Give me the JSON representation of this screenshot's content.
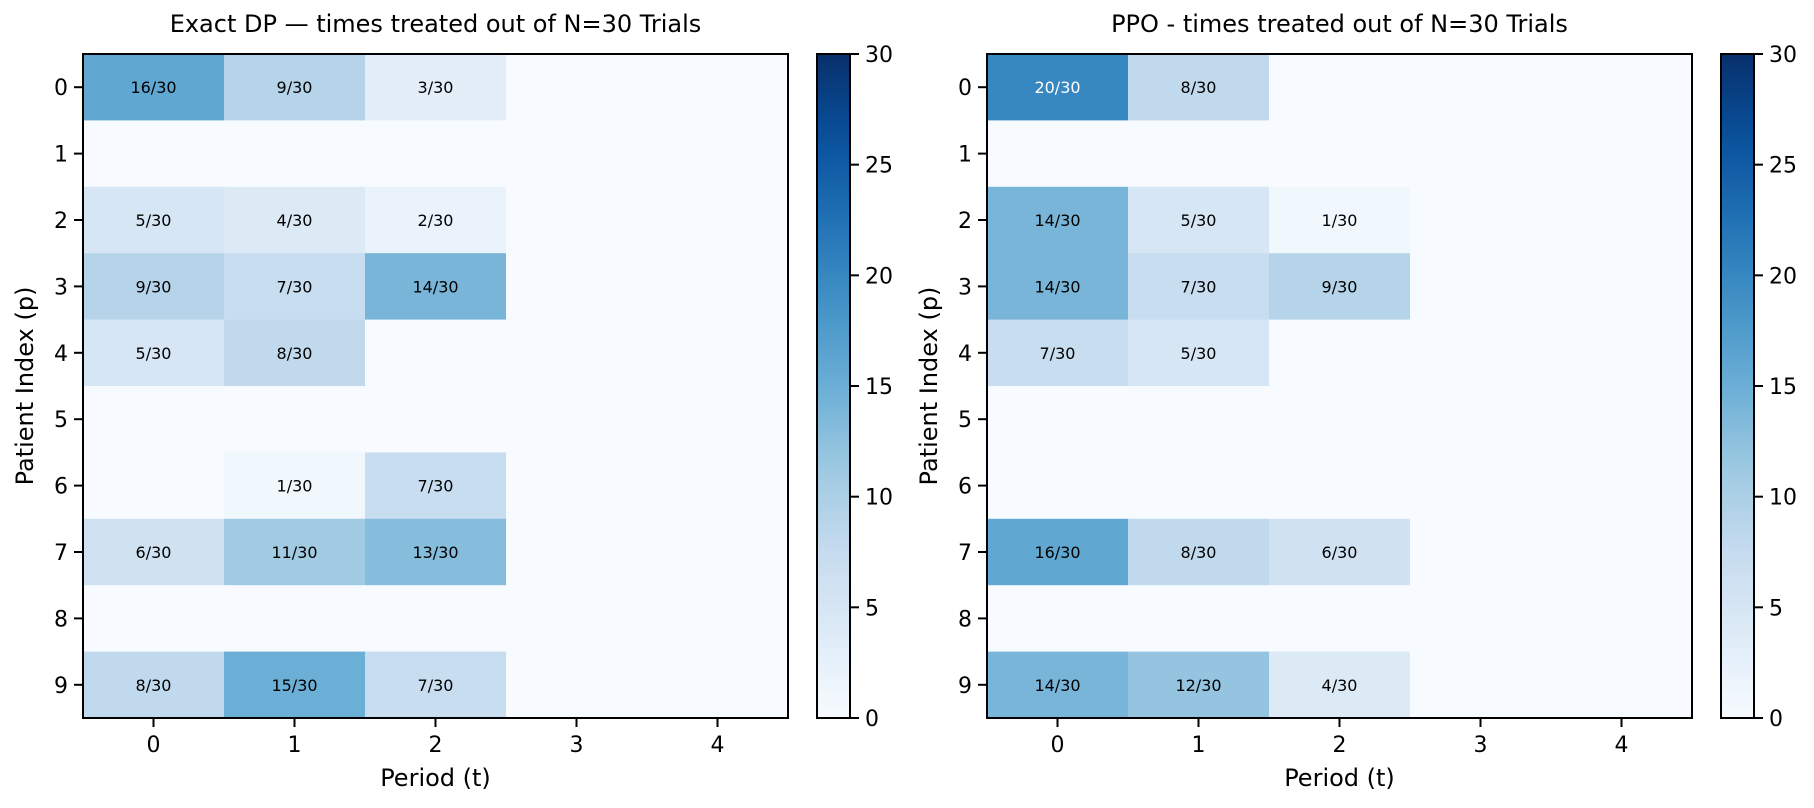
{
  "chart_data": [
    {
      "type": "heatmap",
      "title": "Exact DP — times treated out of N=30 Trials",
      "xlabel": "Period (t)",
      "ylabel": "Patient Index (p)",
      "x_categories": [
        "0",
        "1",
        "2",
        "3",
        "4"
      ],
      "y_categories": [
        "0",
        "1",
        "2",
        "3",
        "4",
        "5",
        "6",
        "7",
        "8",
        "9"
      ],
      "n_trials": 30,
      "values": [
        [
          16,
          9,
          3,
          0,
          0
        ],
        [
          0,
          0,
          0,
          0,
          0
        ],
        [
          5,
          4,
          2,
          0,
          0
        ],
        [
          9,
          7,
          14,
          0,
          0
        ],
        [
          5,
          8,
          0,
          0,
          0
        ],
        [
          0,
          0,
          0,
          0,
          0
        ],
        [
          0,
          1,
          7,
          0,
          0
        ],
        [
          6,
          11,
          13,
          0,
          0
        ],
        [
          0,
          0,
          0,
          0,
          0
        ],
        [
          8,
          15,
          7,
          0,
          0
        ]
      ],
      "cell_label_format": "{v}/30",
      "colorbar": {
        "range": [
          0,
          30
        ],
        "ticks": [
          "0",
          "5",
          "10",
          "15",
          "20",
          "25",
          "30"
        ]
      },
      "colormap": "Blues",
      "grid": false
    },
    {
      "type": "heatmap",
      "title": "PPO - times treated out of N=30 Trials",
      "xlabel": "Period (t)",
      "ylabel": "Patient Index (p)",
      "x_categories": [
        "0",
        "1",
        "2",
        "3",
        "4"
      ],
      "y_categories": [
        "0",
        "1",
        "2",
        "3",
        "4",
        "5",
        "6",
        "7",
        "8",
        "9"
      ],
      "n_trials": 30,
      "values": [
        [
          20,
          8,
          0,
          0,
          0
        ],
        [
          0,
          0,
          0,
          0,
          0
        ],
        [
          14,
          5,
          1,
          0,
          0
        ],
        [
          14,
          7,
          9,
          0,
          0
        ],
        [
          7,
          5,
          0,
          0,
          0
        ],
        [
          0,
          0,
          0,
          0,
          0
        ],
        [
          0,
          0,
          0,
          0,
          0
        ],
        [
          16,
          8,
          6,
          0,
          0
        ],
        [
          0,
          0,
          0,
          0,
          0
        ],
        [
          14,
          12,
          4,
          0,
          0
        ]
      ],
      "cell_label_format": "{v}/30",
      "colorbar": {
        "range": [
          0,
          30
        ],
        "ticks": [
          "0",
          "5",
          "10",
          "15",
          "20",
          "25",
          "30"
        ]
      },
      "colormap": "Blues",
      "grid": false
    }
  ]
}
